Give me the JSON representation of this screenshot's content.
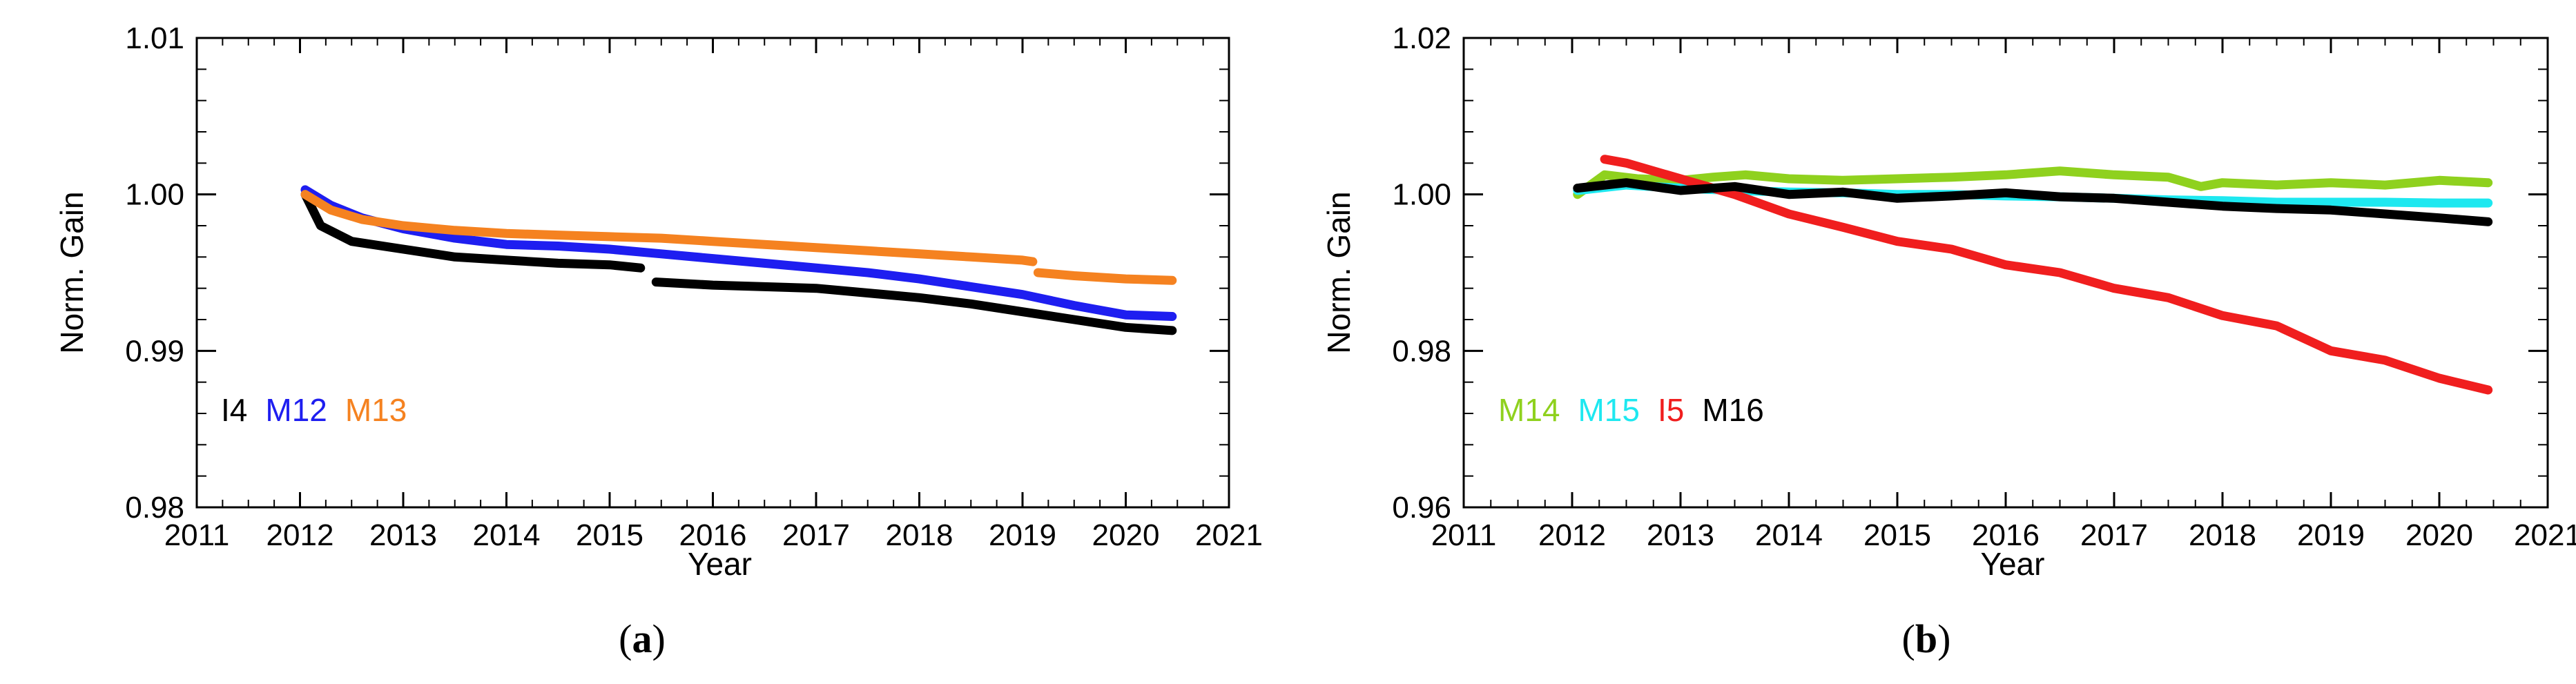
{
  "chart_data": [
    {
      "type": "line",
      "panel_label": "(a)",
      "xlabel": "Year",
      "ylabel": "Norm. Gain",
      "xlim": [
        2011,
        2021
      ],
      "ylim": [
        0.98,
        1.01
      ],
      "xticks": [
        "2011",
        "2012",
        "2013",
        "2014",
        "2015",
        "2016",
        "2017",
        "2018",
        "2019",
        "2020",
        "2021"
      ],
      "yticks": [
        "0.98",
        "0.99",
        "1.00",
        "1.01"
      ],
      "legend_position": "lower-left",
      "series": [
        {
          "name": "I4",
          "color": "#000000",
          "x": [
            2012.05,
            2012.2,
            2012.5,
            2013.0,
            2013.5,
            2014.0,
            2014.5,
            2015.0,
            2015.3
          ],
          "y": [
            1.0,
            0.998,
            0.997,
            0.9965,
            0.996,
            0.9958,
            0.9956,
            0.9955,
            0.9953
          ],
          "segments": [
            {
              "x": [
                2012.05,
                2012.2,
                2012.5,
                2013.0,
                2013.5,
                2014.0,
                2014.5,
                2015.0,
                2015.3
              ],
              "y": [
                1.0,
                0.998,
                0.997,
                0.9965,
                0.996,
                0.9958,
                0.9956,
                0.9955,
                0.9953
              ]
            },
            {
              "x": [
                2015.45,
                2016.0,
                2016.5,
                2017.0,
                2017.5,
                2018.0,
                2018.5,
                2019.0,
                2019.5,
                2020.0,
                2020.45
              ],
              "y": [
                0.9944,
                0.9942,
                0.9941,
                0.994,
                0.9937,
                0.9934,
                0.993,
                0.9925,
                0.992,
                0.9915,
                0.9913
              ]
            }
          ]
        },
        {
          "name": "M12",
          "color": "#1e1ef0",
          "segments": [
            {
              "x": [
                2012.05,
                2012.3,
                2012.6,
                2013.0,
                2013.5,
                2014.0,
                2014.5,
                2015.0,
                2015.5,
                2016.0,
                2016.5,
                2017.0,
                2017.5,
                2018.0,
                2018.5,
                2019.0,
                2019.5,
                2020.0,
                2020.45
              ],
              "y": [
                1.0003,
                0.9993,
                0.9985,
                0.9978,
                0.9972,
                0.9968,
                0.9967,
                0.9965,
                0.9962,
                0.9959,
                0.9956,
                0.9953,
                0.995,
                0.9946,
                0.9941,
                0.9936,
                0.9929,
                0.9923,
                0.9922
              ]
            }
          ]
        },
        {
          "name": "M13",
          "color": "#f58220",
          "segments": [
            {
              "x": [
                2012.05,
                2012.3,
                2012.6,
                2013.0,
                2013.5,
                2014.0,
                2014.5,
                2015.0,
                2015.5,
                2016.0,
                2016.5,
                2017.0,
                2017.5,
                2018.0,
                2018.5,
                2019.0,
                2019.1
              ],
              "y": [
                1.0,
                0.999,
                0.9984,
                0.998,
                0.9977,
                0.9975,
                0.9974,
                0.9973,
                0.9972,
                0.997,
                0.9968,
                0.9966,
                0.9964,
                0.9962,
                0.996,
                0.9958,
                0.9957
              ]
            },
            {
              "x": [
                2019.15,
                2019.5,
                2020.0,
                2020.45
              ],
              "y": [
                0.995,
                0.9948,
                0.9946,
                0.9945
              ]
            }
          ]
        }
      ]
    },
    {
      "type": "line",
      "panel_label": "(b)",
      "xlabel": "Year",
      "ylabel": "Norm. Gain",
      "xlim": [
        2011,
        2021
      ],
      "ylim": [
        0.96,
        1.02
      ],
      "xticks": [
        "2011",
        "2012",
        "2013",
        "2014",
        "2015",
        "2016",
        "2017",
        "2018",
        "2019",
        "2020",
        "2021"
      ],
      "yticks": [
        "0.96",
        "0.98",
        "1.00",
        "1.02"
      ],
      "legend_position": "lower-left",
      "series": [
        {
          "name": "M14",
          "color": "#8fd11e",
          "segments": [
            {
              "x": [
                2012.05,
                2012.3,
                2012.6,
                2013.0,
                2013.3,
                2013.6,
                2014.0,
                2014.5,
                2015.0,
                2015.5,
                2016.0,
                2016.5,
                2017.0,
                2017.5,
                2017.8,
                2018.0,
                2018.5,
                2019.0,
                2019.5,
                2020.0,
                2020.45
              ],
              "y": [
                1.0,
                1.0025,
                1.002,
                1.0018,
                1.0022,
                1.0025,
                1.002,
                1.0018,
                1.002,
                1.0022,
                1.0025,
                1.003,
                1.0025,
                1.0022,
                1.001,
                1.0015,
                1.0012,
                1.0015,
                1.0012,
                1.0018,
                1.0015
              ]
            }
          ]
        },
        {
          "name": "M15",
          "color": "#1ee8f0",
          "segments": [
            {
              "x": [
                2012.05,
                2012.5,
                2013.0,
                2013.5,
                2014.0,
                2014.5,
                2015.0,
                2015.5,
                2016.0,
                2016.5,
                2017.0,
                2017.5,
                2018.0,
                2018.5,
                2019.0,
                2019.5,
                2020.0,
                2020.45
              ],
              "y": [
                1.0005,
                1.0012,
                1.0008,
                1.0005,
                1.0003,
                1.0002,
                1.0,
                1.0,
                0.9998,
                0.9997,
                0.9995,
                0.9993,
                0.9992,
                0.999,
                0.999,
                0.999,
                0.9989,
                0.9989
              ]
            }
          ]
        },
        {
          "name": "I5",
          "color": "#f01e1e",
          "segments": [
            {
              "x": [
                2012.3,
                2012.5,
                2013.0,
                2013.5,
                2014.0,
                2014.5,
                2015.0,
                2015.5,
                2016.0,
                2016.5,
                2017.0,
                2017.5,
                2018.0,
                2018.5,
                2019.0,
                2019.5,
                2020.0,
                2020.45
              ],
              "y": [
                1.0045,
                1.004,
                1.002,
                1.0,
                0.9975,
                0.9958,
                0.994,
                0.993,
                0.991,
                0.99,
                0.988,
                0.9868,
                0.9845,
                0.9832,
                0.98,
                0.9788,
                0.9765,
                0.975
              ]
            }
          ]
        },
        {
          "name": "M16",
          "color": "#000000",
          "segments": [
            {
              "x": [
                2012.05,
                2012.5,
                2013.0,
                2013.5,
                2014.0,
                2014.5,
                2015.0,
                2015.5,
                2016.0,
                2016.5,
                2017.0,
                2017.5,
                2018.0,
                2018.5,
                2019.0,
                2019.5,
                2020.0,
                2020.45
              ],
              "y": [
                1.0008,
                1.0015,
                1.0005,
                1.001,
                1.0,
                1.0003,
                0.9995,
                0.9998,
                1.0002,
                0.9997,
                0.9995,
                0.999,
                0.9985,
                0.9982,
                0.998,
                0.9975,
                0.997,
                0.9965
              ]
            }
          ]
        }
      ]
    }
  ]
}
